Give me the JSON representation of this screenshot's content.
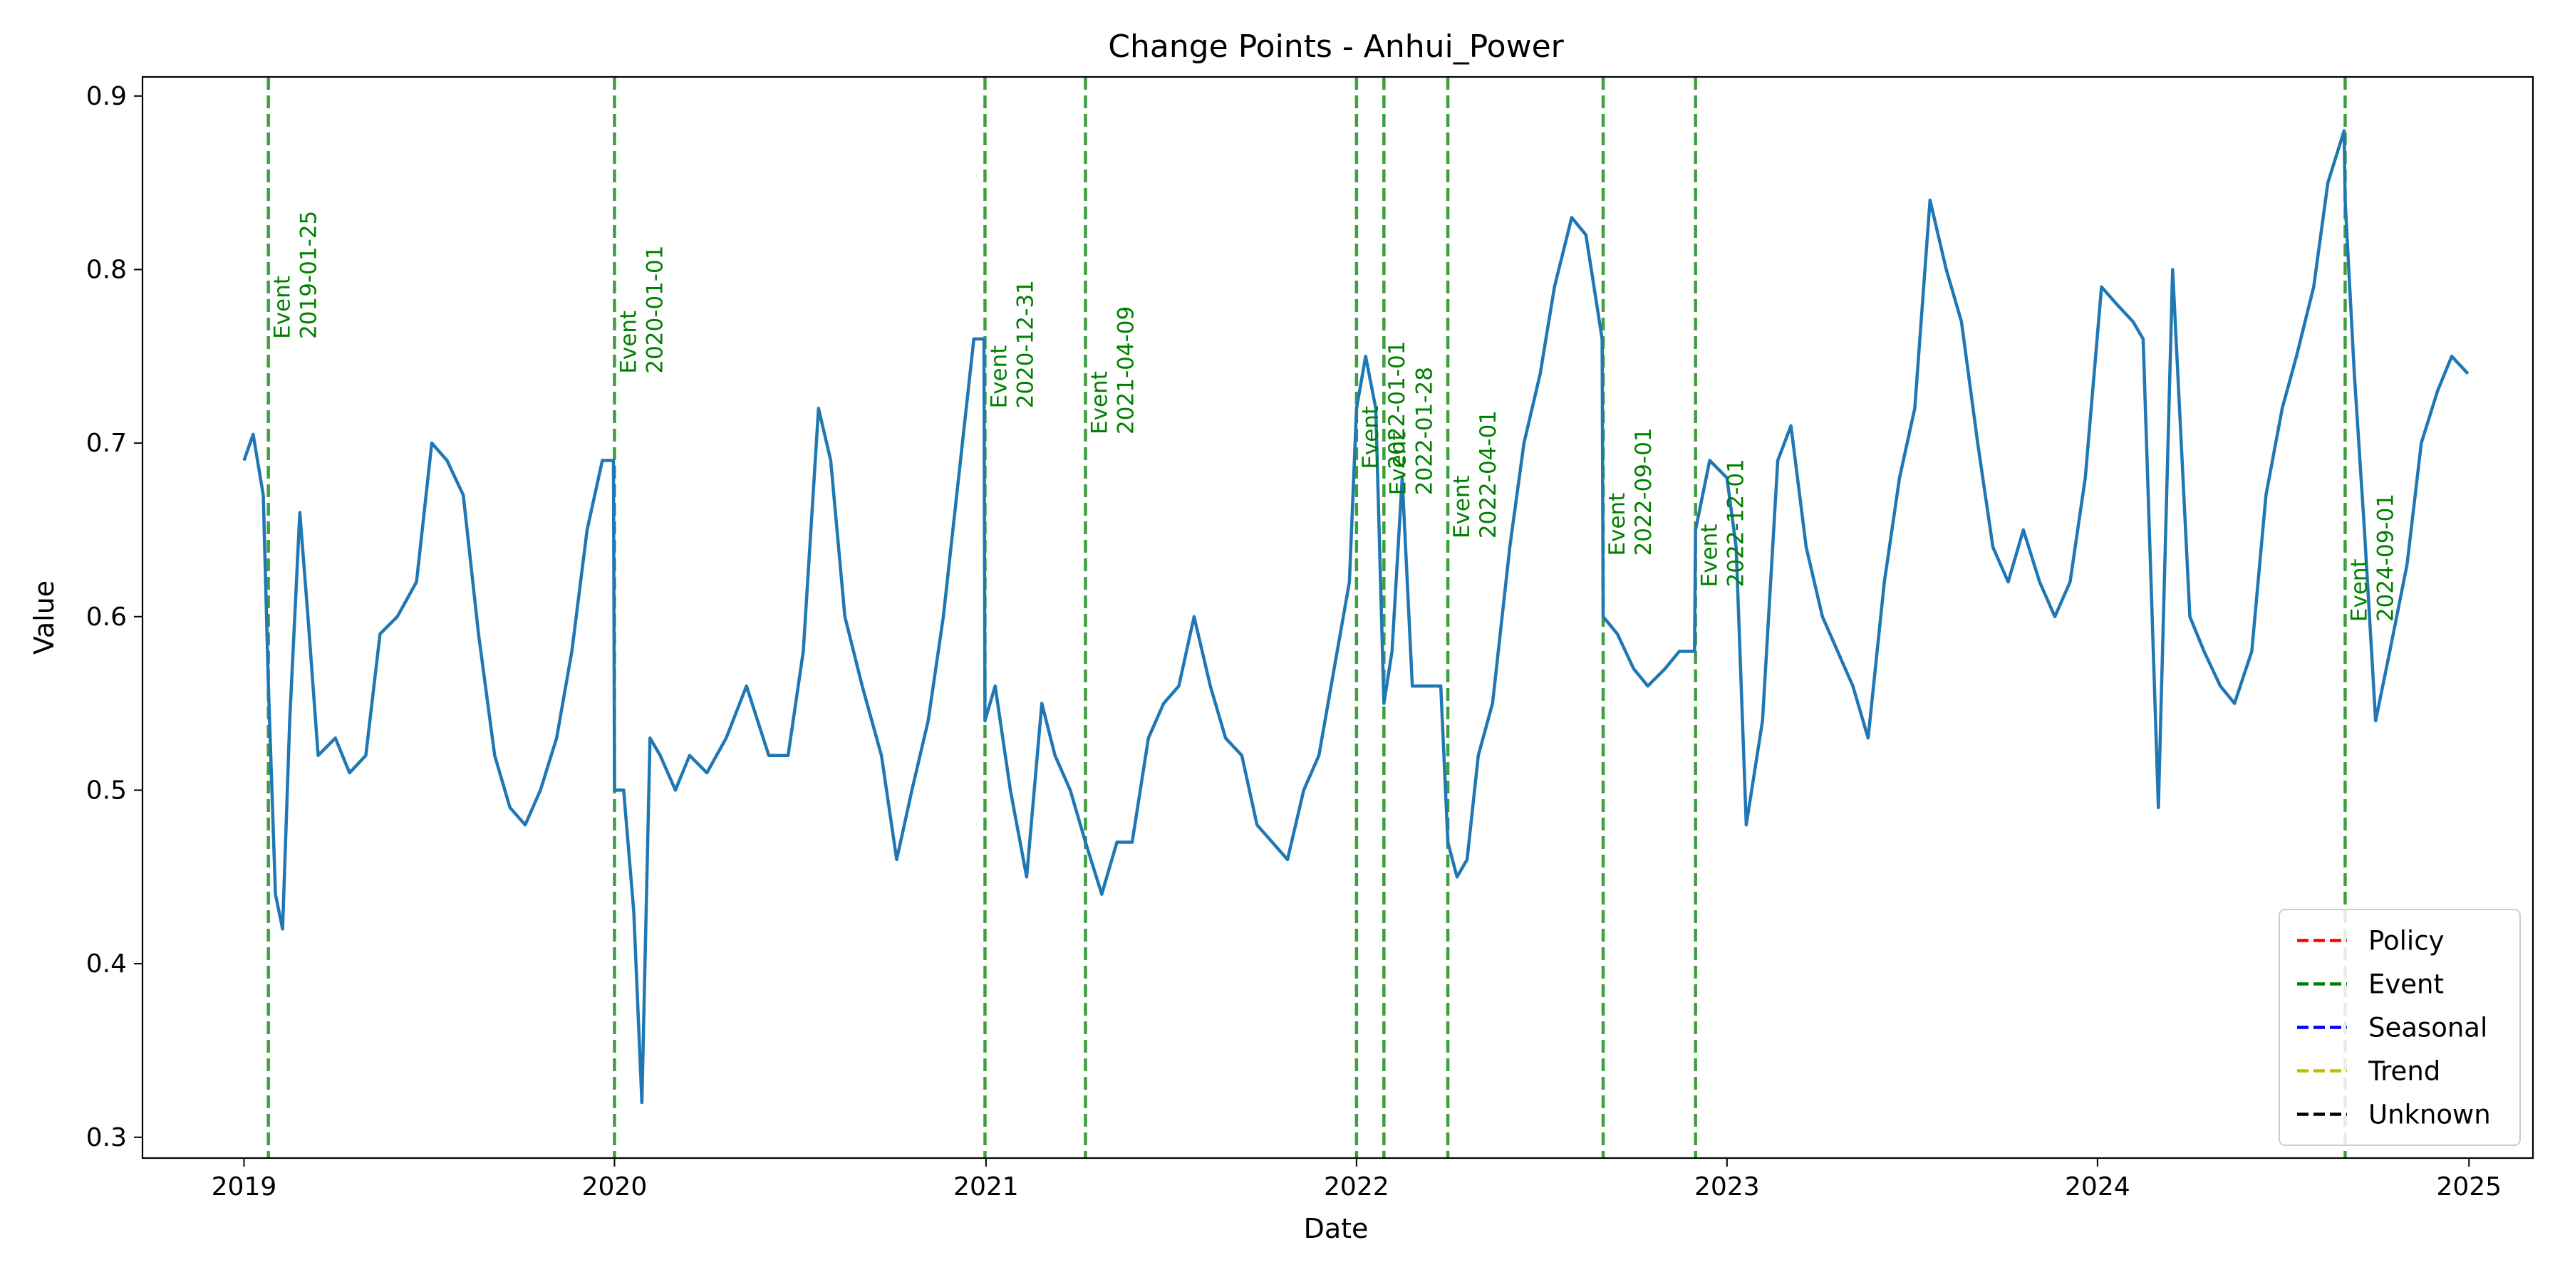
{
  "chart_data": {
    "type": "line",
    "title": "Change Points - Anhui_Power",
    "xlabel": "Date",
    "ylabel": "Value",
    "xlim": [
      "2018-09-23",
      "2025-03-05"
    ],
    "ylim": [
      0.288,
      0.911
    ],
    "x_ticks": [
      "2019",
      "2020",
      "2021",
      "2022",
      "2023",
      "2024",
      "2025"
    ],
    "y_ticks": [
      "0.3",
      "0.4",
      "0.5",
      "0.6",
      "0.7",
      "0.8",
      "0.9"
    ],
    "grid": false,
    "legend_position": "lower-right",
    "series_color": "#1f77b4",
    "series": [
      {
        "x": [
          "2019-01-01",
          "2019-01-10",
          "2019-01-20",
          "2019-01-25",
          "2019-02-01",
          "2019-02-08",
          "2019-02-15",
          "2019-02-25",
          "2019-03-05",
          "2019-03-15",
          "2019-04-01",
          "2019-04-15",
          "2019-05-01",
          "2019-05-15",
          "2019-06-01",
          "2019-06-20",
          "2019-07-05",
          "2019-07-20",
          "2019-08-05",
          "2019-08-20",
          "2019-09-05",
          "2019-09-20",
          "2019-10-05",
          "2019-10-20",
          "2019-11-05",
          "2019-11-20",
          "2019-12-05",
          "2019-12-20",
          "2019-12-31",
          "2020-01-01",
          "2020-01-10",
          "2020-01-20",
          "2020-01-28",
          "2020-02-05",
          "2020-02-15",
          "2020-03-01",
          "2020-03-15",
          "2020-04-01",
          "2020-04-20",
          "2020-05-10",
          "2020-06-01",
          "2020-06-20",
          "2020-07-05",
          "2020-07-20",
          "2020-08-01",
          "2020-08-15",
          "2020-09-01",
          "2020-09-20",
          "2020-10-05",
          "2020-10-20",
          "2020-11-05",
          "2020-11-20",
          "2020-12-05",
          "2020-12-20",
          "2020-12-30",
          "2020-12-31",
          "2021-01-10",
          "2021-01-25",
          "2021-02-10",
          "2021-02-25",
          "2021-03-10",
          "2021-03-25",
          "2021-04-09",
          "2021-04-25",
          "2021-05-10",
          "2021-05-25",
          "2021-06-10",
          "2021-06-25",
          "2021-07-10",
          "2021-07-25",
          "2021-08-10",
          "2021-08-25",
          "2021-09-10",
          "2021-09-25",
          "2021-10-10",
          "2021-10-25",
          "2021-11-10",
          "2021-11-25",
          "2021-12-10",
          "2021-12-25",
          "2022-01-01",
          "2022-01-10",
          "2022-01-20",
          "2022-01-28",
          "2022-02-05",
          "2022-02-15",
          "2022-02-25",
          "2022-03-10",
          "2022-03-25",
          "2022-04-01",
          "2022-04-10",
          "2022-04-20",
          "2022-05-01",
          "2022-05-15",
          "2022-06-01",
          "2022-06-15",
          "2022-07-01",
          "2022-07-15",
          "2022-08-01",
          "2022-08-15",
          "2022-08-31",
          "2022-09-01",
          "2022-09-15",
          "2022-10-01",
          "2022-10-15",
          "2022-11-01",
          "2022-11-15",
          "2022-11-30",
          "2022-12-01",
          "2022-12-15",
          "2023-01-01",
          "2023-01-10",
          "2023-01-20",
          "2023-02-05",
          "2023-02-20",
          "2023-03-05",
          "2023-03-20",
          "2023-04-05",
          "2023-04-20",
          "2023-05-05",
          "2023-05-20",
          "2023-06-05",
          "2023-06-20",
          "2023-07-05",
          "2023-07-20",
          "2023-08-05",
          "2023-08-20",
          "2023-09-05",
          "2023-09-20",
          "2023-10-05",
          "2023-10-20",
          "2023-11-05",
          "2023-11-20",
          "2023-12-05",
          "2023-12-20",
          "2024-01-05",
          "2024-01-20",
          "2024-02-05",
          "2024-02-15",
          "2024-03-01",
          "2024-03-15",
          "2024-04-01",
          "2024-04-15",
          "2024-05-01",
          "2024-05-15",
          "2024-06-01",
          "2024-06-15",
          "2024-07-01",
          "2024-07-15",
          "2024-08-01",
          "2024-08-15",
          "2024-08-31",
          "2024-09-01",
          "2024-09-10",
          "2024-09-20",
          "2024-10-01",
          "2024-10-15",
          "2024-11-01",
          "2024-11-15",
          "2024-12-01",
          "2024-12-15",
          "2024-12-31"
        ],
        "values": [
          0.69,
          0.705,
          0.67,
          0.56,
          0.44,
          0.42,
          0.54,
          0.66,
          0.6,
          0.52,
          0.53,
          0.51,
          0.52,
          0.59,
          0.6,
          0.62,
          0.7,
          0.69,
          0.67,
          0.59,
          0.52,
          0.49,
          0.48,
          0.5,
          0.53,
          0.58,
          0.65,
          0.69,
          0.69,
          0.5,
          0.5,
          0.43,
          0.32,
          0.53,
          0.52,
          0.5,
          0.52,
          0.51,
          0.53,
          0.56,
          0.52,
          0.52,
          0.58,
          0.72,
          0.69,
          0.6,
          0.56,
          0.52,
          0.46,
          0.5,
          0.54,
          0.6,
          0.68,
          0.76,
          0.76,
          0.54,
          0.56,
          0.5,
          0.45,
          0.55,
          0.52,
          0.5,
          0.47,
          0.44,
          0.47,
          0.47,
          0.53,
          0.55,
          0.56,
          0.6,
          0.56,
          0.53,
          0.52,
          0.48,
          0.47,
          0.46,
          0.5,
          0.52,
          0.57,
          0.62,
          0.72,
          0.75,
          0.72,
          0.55,
          0.58,
          0.68,
          0.56,
          0.56,
          0.56,
          0.47,
          0.45,
          0.46,
          0.52,
          0.55,
          0.64,
          0.7,
          0.74,
          0.79,
          0.83,
          0.82,
          0.76,
          0.6,
          0.59,
          0.57,
          0.56,
          0.57,
          0.58,
          0.58,
          0.65,
          0.69,
          0.68,
          0.64,
          0.48,
          0.54,
          0.69,
          0.71,
          0.64,
          0.6,
          0.58,
          0.56,
          0.53,
          0.62,
          0.68,
          0.72,
          0.84,
          0.8,
          0.77,
          0.7,
          0.64,
          0.62,
          0.65,
          0.62,
          0.6,
          0.62,
          0.68,
          0.79,
          0.78,
          0.77,
          0.76,
          0.49,
          0.8,
          0.6,
          0.58,
          0.56,
          0.55,
          0.58,
          0.67,
          0.72,
          0.75,
          0.79,
          0.85,
          0.88,
          0.84,
          0.74,
          0.65,
          0.54,
          0.58,
          0.63,
          0.7,
          0.73,
          0.75,
          0.74
        ]
      }
    ],
    "change_points": [
      {
        "date": "2019-01-25",
        "type": "Event",
        "label_type": "Event",
        "label_date": "2019-01-25",
        "label_value": 0.76
      },
      {
        "date": "2020-01-01",
        "type": "Event",
        "label_type": "Event",
        "label_date": "2020-01-01",
        "label_value": 0.74
      },
      {
        "date": "2020-12-31",
        "type": "Event",
        "label_type": "Event",
        "label_date": "2020-12-31",
        "label_value": 0.72
      },
      {
        "date": "2021-04-09",
        "type": "Event",
        "label_type": "Event",
        "label_date": "2021-04-09",
        "label_value": 0.705
      },
      {
        "date": "2022-01-01",
        "type": "Event",
        "label_type": "Event",
        "label_date": "2022-01-01",
        "label_value": 0.685
      },
      {
        "date": "2022-01-28",
        "type": "Event",
        "label_type": "Event",
        "label_date": "2022-01-28",
        "label_value": 0.67
      },
      {
        "date": "2022-04-01",
        "type": "Event",
        "label_type": "Event",
        "label_date": "2022-04-01",
        "label_value": 0.645
      },
      {
        "date": "2022-09-01",
        "type": "Event",
        "label_type": "Event",
        "label_date": "2022-09-01",
        "label_value": 0.635
      },
      {
        "date": "2022-12-01",
        "type": "Event",
        "label_type": "Event",
        "label_date": "2022-12-01",
        "label_value": 0.617
      },
      {
        "date": "2024-09-01",
        "type": "Event",
        "label_type": "Event",
        "label_date": "2024-09-01",
        "label_value": 0.597
      }
    ],
    "legend": [
      {
        "label": "Policy",
        "color": "#ff0000"
      },
      {
        "label": "Event",
        "color": "#008000"
      },
      {
        "label": "Seasonal",
        "color": "#0000ff"
      },
      {
        "label": "Trend",
        "color": "#bfbf00"
      },
      {
        "label": "Unknown",
        "color": "#000000"
      }
    ]
  }
}
